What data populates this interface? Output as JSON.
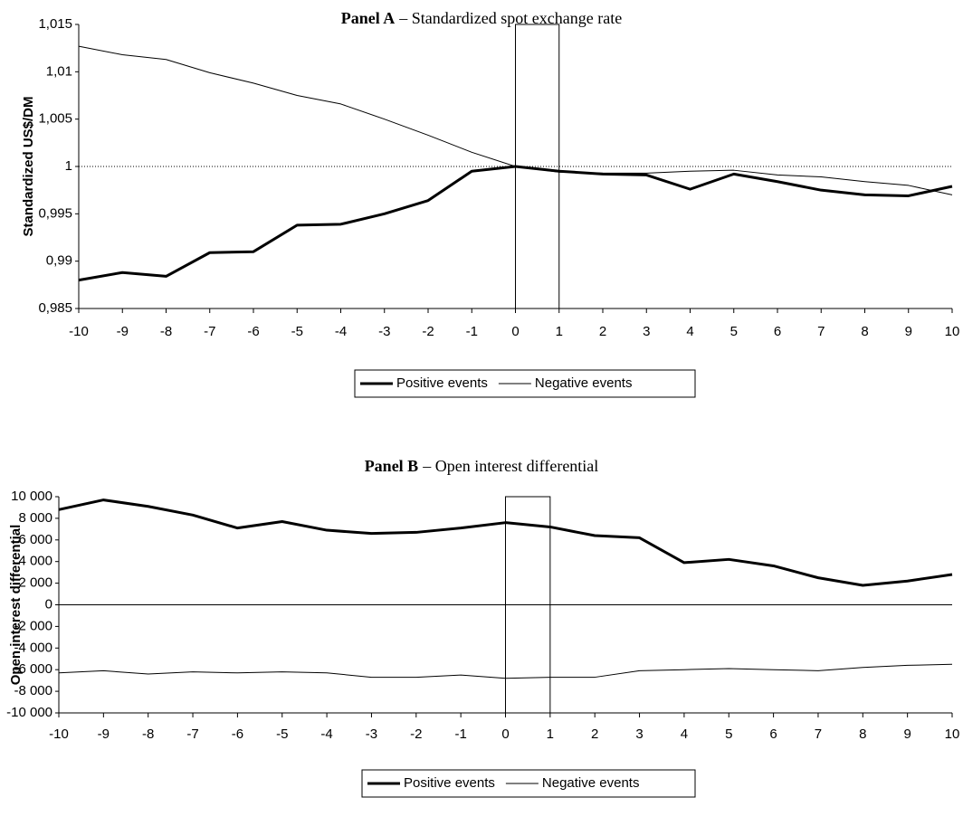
{
  "chart_data": [
    {
      "type": "line",
      "panel": "Panel A",
      "title": "– Standardized spot exchange rate",
      "ylabel": "Standardized US$/DM",
      "x": [
        -10,
        -9,
        -8,
        -7,
        -6,
        -5,
        -4,
        -3,
        -2,
        -1,
        0,
        1,
        2,
        3,
        4,
        5,
        6,
        7,
        8,
        9,
        10
      ],
      "series": [
        {
          "name": "Positive events",
          "color": "#000000",
          "line_width": 3,
          "values": [
            0.988,
            0.9888,
            0.9884,
            0.9909,
            0.991,
            0.9938,
            0.9939,
            0.995,
            0.9964,
            0.9995,
            1.0,
            0.9995,
            0.9992,
            0.9991,
            0.9976,
            0.9992,
            0.9984,
            0.9975,
            0.997,
            0.9969,
            0.9979
          ]
        },
        {
          "name": "Negative events",
          "color": "#000000",
          "line_width": 1,
          "values": [
            1.0127,
            1.0118,
            1.0113,
            1.0099,
            1.0088,
            1.0075,
            1.0066,
            1.005,
            1.0033,
            1.0015,
            1.0,
            0.9994,
            0.9993,
            0.9993,
            0.9995,
            0.9996,
            0.9991,
            0.9989,
            0.9984,
            0.998,
            0.997
          ]
        }
      ],
      "xlim": [
        -10,
        10
      ],
      "xticks": [
        -10,
        -9,
        -8,
        -7,
        -6,
        -5,
        -4,
        -3,
        -2,
        -1,
        0,
        1,
        2,
        3,
        4,
        5,
        6,
        7,
        8,
        9,
        10
      ],
      "ylim": [
        0.985,
        1.015
      ],
      "yticks": [
        {
          "value": 0.985,
          "label": "0,985"
        },
        {
          "value": 0.99,
          "label": "0,99"
        },
        {
          "value": 0.995,
          "label": "0,995"
        },
        1,
        {
          "value": 1.005,
          "label": "1,005"
        },
        {
          "value": 1.01,
          "label": "1,01"
        },
        {
          "value": 1.015,
          "label": "1,015"
        }
      ],
      "reference_line": 1,
      "reference_style": "dotted",
      "highlight": [
        0,
        1
      ],
      "grid": false,
      "legend": "bottom"
    },
    {
      "type": "line",
      "panel": "Panel B",
      "title": "– Open interest differential",
      "ylabel": "Open interest differential",
      "x": [
        -10,
        -9,
        -8,
        -7,
        -6,
        -5,
        -4,
        -3,
        -2,
        -1,
        0,
        1,
        2,
        3,
        4,
        5,
        6,
        7,
        8,
        9,
        10
      ],
      "series": [
        {
          "name": "Positive events",
          "color": "#000000",
          "line_width": 3,
          "values": [
            8800,
            9700,
            9100,
            8300,
            7100,
            7700,
            6900,
            6600,
            6700,
            7100,
            7600,
            7200,
            6400,
            6200,
            3900,
            4200,
            3600,
            2500,
            1800,
            2200,
            2800
          ]
        },
        {
          "name": "Negative events",
          "color": "#000000",
          "line_width": 1,
          "values": [
            -6300,
            -6100,
            -6400,
            -6200,
            -6300,
            -6200,
            -6300,
            -6700,
            -6700,
            -6500,
            -6800,
            -6700,
            -6700,
            -6100,
            -6000,
            -5900,
            -6000,
            -6100,
            -5800,
            -5600,
            -5500
          ]
        }
      ],
      "xlim": [
        -10,
        10
      ],
      "xticks": [
        -10,
        -9,
        -8,
        -7,
        -6,
        -5,
        -4,
        -3,
        -2,
        -1,
        0,
        1,
        2,
        3,
        4,
        5,
        6,
        7,
        8,
        9,
        10
      ],
      "ylim": [
        -10000,
        10000
      ],
      "yticks": [
        {
          "value": -10000,
          "label": "-10 000"
        },
        {
          "value": -8000,
          "label": "-8 000"
        },
        {
          "value": -6000,
          "label": "-6 000"
        },
        {
          "value": -4000,
          "label": "-4 000"
        },
        {
          "value": -2000,
          "label": "-2 000"
        },
        0,
        {
          "value": 2000,
          "label": "2 000"
        },
        {
          "value": 4000,
          "label": "4 000"
        },
        {
          "value": 6000,
          "label": "6 000"
        },
        {
          "value": 8000,
          "label": "8 000"
        },
        {
          "value": 10000,
          "label": "10 000"
        }
      ],
      "reference_line": 0,
      "reference_style": "solid",
      "highlight": [
        0,
        1
      ],
      "grid": false,
      "legend": "bottom"
    }
  ]
}
